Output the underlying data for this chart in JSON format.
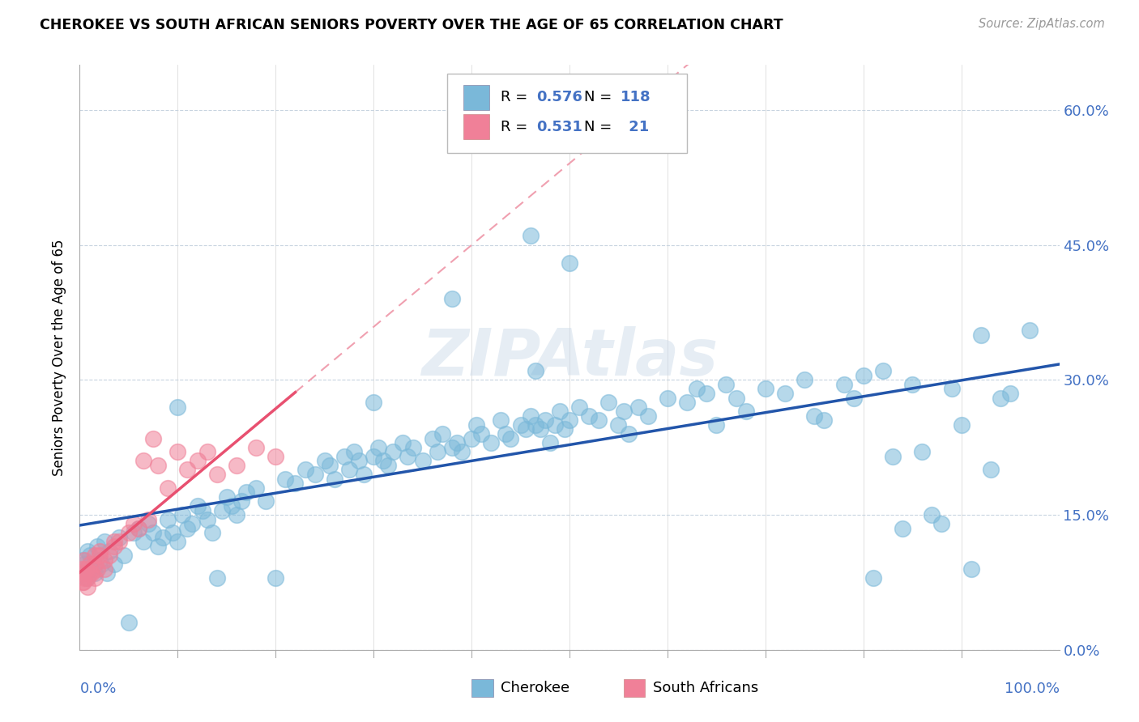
{
  "title": "CHEROKEE VS SOUTH AFRICAN SENIORS POVERTY OVER THE AGE OF 65 CORRELATION CHART",
  "source": "Source: ZipAtlas.com",
  "ylabel": "Seniors Poverty Over the Age of 65",
  "ytick_vals": [
    0.0,
    15.0,
    30.0,
    45.0,
    60.0
  ],
  "xlim": [
    0,
    100
  ],
  "ylim": [
    0,
    65
  ],
  "cherokee_color": "#7ab8d9",
  "sa_color": "#f08098",
  "trendline_cherokee": "#2255aa",
  "trendline_sa_solid": "#e85070",
  "trendline_sa_dashed": "#f0a0b0",
  "cherokee_scatter": [
    [
      0.3,
      10.0
    ],
    [
      0.5,
      9.5
    ],
    [
      0.7,
      8.0
    ],
    [
      0.8,
      11.0
    ],
    [
      1.0,
      10.5
    ],
    [
      1.2,
      9.0
    ],
    [
      1.5,
      8.5
    ],
    [
      1.8,
      11.5
    ],
    [
      2.0,
      10.0
    ],
    [
      2.2,
      9.5
    ],
    [
      2.5,
      12.0
    ],
    [
      2.8,
      8.5
    ],
    [
      3.0,
      11.0
    ],
    [
      3.5,
      9.5
    ],
    [
      4.0,
      12.5
    ],
    [
      4.5,
      10.5
    ],
    [
      5.0,
      3.0
    ],
    [
      5.5,
      13.0
    ],
    [
      6.0,
      13.5
    ],
    [
      6.5,
      12.0
    ],
    [
      7.0,
      14.0
    ],
    [
      7.5,
      13.0
    ],
    [
      8.0,
      11.5
    ],
    [
      8.5,
      12.5
    ],
    [
      9.0,
      14.5
    ],
    [
      9.5,
      13.0
    ],
    [
      10.0,
      12.0
    ],
    [
      10.5,
      15.0
    ],
    [
      11.0,
      13.5
    ],
    [
      11.5,
      14.0
    ],
    [
      12.0,
      16.0
    ],
    [
      12.5,
      15.5
    ],
    [
      13.0,
      14.5
    ],
    [
      13.5,
      13.0
    ],
    [
      14.0,
      8.0
    ],
    [
      14.5,
      15.5
    ],
    [
      15.0,
      17.0
    ],
    [
      15.5,
      16.0
    ],
    [
      16.0,
      15.0
    ],
    [
      16.5,
      16.5
    ],
    [
      17.0,
      17.5
    ],
    [
      18.0,
      18.0
    ],
    [
      19.0,
      16.5
    ],
    [
      20.0,
      8.0
    ],
    [
      21.0,
      19.0
    ],
    [
      22.0,
      18.5
    ],
    [
      23.0,
      20.0
    ],
    [
      24.0,
      19.5
    ],
    [
      25.0,
      21.0
    ],
    [
      25.5,
      20.5
    ],
    [
      26.0,
      19.0
    ],
    [
      27.0,
      21.5
    ],
    [
      27.5,
      20.0
    ],
    [
      28.0,
      22.0
    ],
    [
      28.5,
      21.0
    ],
    [
      29.0,
      19.5
    ],
    [
      30.0,
      21.5
    ],
    [
      30.5,
      22.5
    ],
    [
      31.0,
      21.0
    ],
    [
      31.5,
      20.5
    ],
    [
      32.0,
      22.0
    ],
    [
      33.0,
      23.0
    ],
    [
      33.5,
      21.5
    ],
    [
      34.0,
      22.5
    ],
    [
      35.0,
      21.0
    ],
    [
      36.0,
      23.5
    ],
    [
      36.5,
      22.0
    ],
    [
      37.0,
      24.0
    ],
    [
      38.0,
      22.5
    ],
    [
      38.5,
      23.0
    ],
    [
      39.0,
      22.0
    ],
    [
      40.0,
      23.5
    ],
    [
      40.5,
      25.0
    ],
    [
      41.0,
      24.0
    ],
    [
      42.0,
      23.0
    ],
    [
      43.0,
      25.5
    ],
    [
      43.5,
      24.0
    ],
    [
      44.0,
      23.5
    ],
    [
      45.0,
      25.0
    ],
    [
      45.5,
      24.5
    ],
    [
      46.0,
      26.0
    ],
    [
      46.5,
      25.0
    ],
    [
      47.0,
      24.5
    ],
    [
      47.5,
      25.5
    ],
    [
      48.0,
      23.0
    ],
    [
      48.5,
      25.0
    ],
    [
      49.0,
      26.5
    ],
    [
      49.5,
      24.5
    ],
    [
      50.0,
      25.5
    ],
    [
      51.0,
      27.0
    ],
    [
      52.0,
      26.0
    ],
    [
      53.0,
      25.5
    ],
    [
      54.0,
      27.5
    ],
    [
      55.0,
      25.0
    ],
    [
      55.5,
      26.5
    ],
    [
      56.0,
      24.0
    ],
    [
      57.0,
      27.0
    ],
    [
      58.0,
      26.0
    ],
    [
      60.0,
      28.0
    ],
    [
      62.0,
      27.5
    ],
    [
      63.0,
      29.0
    ],
    [
      64.0,
      28.5
    ],
    [
      65.0,
      25.0
    ],
    [
      66.0,
      29.5
    ],
    [
      67.0,
      28.0
    ],
    [
      68.0,
      26.5
    ],
    [
      70.0,
      29.0
    ],
    [
      72.0,
      28.5
    ],
    [
      74.0,
      30.0
    ],
    [
      75.0,
      26.0
    ],
    [
      76.0,
      25.5
    ],
    [
      78.0,
      29.5
    ],
    [
      79.0,
      28.0
    ],
    [
      80.0,
      30.5
    ],
    [
      81.0,
      8.0
    ],
    [
      82.0,
      31.0
    ],
    [
      83.0,
      21.5
    ],
    [
      84.0,
      13.5
    ],
    [
      85.0,
      29.5
    ],
    [
      86.0,
      22.0
    ],
    [
      87.0,
      15.0
    ],
    [
      88.0,
      14.0
    ],
    [
      89.0,
      29.0
    ],
    [
      90.0,
      25.0
    ],
    [
      91.0,
      9.0
    ],
    [
      92.0,
      35.0
    ],
    [
      93.0,
      20.0
    ],
    [
      94.0,
      28.0
    ],
    [
      95.0,
      28.5
    ],
    [
      97.0,
      35.5
    ],
    [
      46.0,
      46.0
    ],
    [
      50.0,
      43.0
    ],
    [
      38.0,
      39.0
    ],
    [
      46.5,
      31.0
    ],
    [
      10.0,
      27.0
    ],
    [
      30.0,
      27.5
    ]
  ],
  "sa_scatter": [
    [
      0.2,
      9.0
    ],
    [
      0.3,
      8.5
    ],
    [
      0.4,
      7.5
    ],
    [
      0.5,
      10.0
    ],
    [
      0.6,
      9.0
    ],
    [
      0.8,
      8.0
    ],
    [
      1.0,
      9.5
    ],
    [
      1.2,
      8.5
    ],
    [
      1.5,
      10.5
    ],
    [
      1.8,
      9.0
    ],
    [
      2.0,
      11.0
    ],
    [
      2.5,
      10.0
    ],
    [
      3.0,
      10.5
    ],
    [
      3.5,
      11.5
    ],
    [
      4.0,
      12.0
    ],
    [
      5.0,
      13.0
    ],
    [
      6.0,
      13.5
    ],
    [
      7.0,
      14.5
    ],
    [
      8.0,
      20.5
    ],
    [
      10.0,
      22.0
    ],
    [
      12.0,
      21.0
    ],
    [
      14.0,
      19.5
    ],
    [
      16.0,
      20.5
    ],
    [
      0.3,
      7.5
    ],
    [
      0.5,
      8.0
    ],
    [
      1.0,
      8.5
    ],
    [
      1.5,
      9.5
    ],
    [
      2.5,
      9.0
    ],
    [
      9.0,
      18.0
    ],
    [
      11.0,
      20.0
    ],
    [
      5.5,
      14.0
    ],
    [
      3.5,
      12.0
    ],
    [
      18.0,
      22.5
    ],
    [
      6.5,
      21.0
    ],
    [
      20.0,
      21.5
    ],
    [
      7.5,
      23.5
    ],
    [
      13.0,
      22.0
    ],
    [
      1.5,
      8.0
    ],
    [
      0.8,
      7.0
    ],
    [
      2.0,
      10.5
    ]
  ],
  "sa_solid_x_max": 22,
  "cherokee_trend_x0": 0,
  "cherokee_trend_x1": 100
}
